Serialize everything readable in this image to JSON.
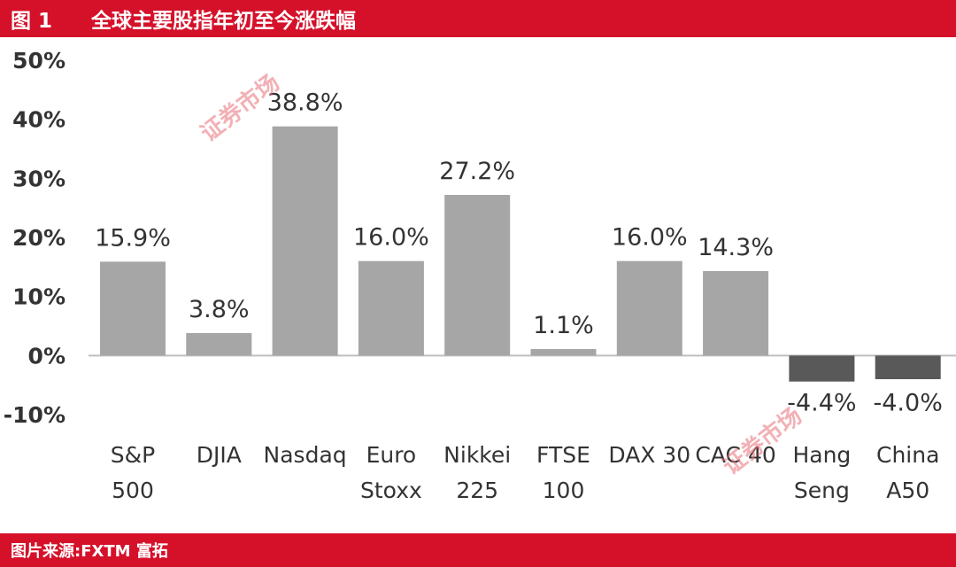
{
  "header": {
    "figure_number": "图 1",
    "title": "全球主要股指年初至今涨跌幅"
  },
  "footer": {
    "source": "图片来源:FXTM 富拓"
  },
  "watermark": {
    "text": "证券市场"
  },
  "colors": {
    "brand_red": "#d5112a",
    "positive_bar": "#a6a6a6",
    "negative_bar": "#595959"
  },
  "chart_data": {
    "type": "bar",
    "title": "全球主要股指年初至今涨跌幅",
    "xlabel": "",
    "ylabel": "",
    "ylim": [
      -0.1,
      0.5
    ],
    "ytick_labels": [
      "50%",
      "40%",
      "30%",
      "20%",
      "10%",
      "0%",
      "-10%"
    ],
    "grid": false,
    "legend": "none",
    "categories": [
      [
        "S&P",
        "500"
      ],
      [
        "DJIA"
      ],
      [
        "Nasdaq"
      ],
      [
        "Euro",
        "Stoxx"
      ],
      [
        "Nikkei",
        "225"
      ],
      [
        "FTSE",
        "100"
      ],
      [
        "DAX 30"
      ],
      [
        "CAC 40"
      ],
      [
        "Hang",
        "Seng"
      ],
      [
        "China",
        "A50"
      ]
    ],
    "values": [
      0.159,
      0.038,
      0.388,
      0.16,
      0.272,
      0.011,
      0.16,
      0.143,
      -0.044,
      -0.04
    ],
    "data_labels": [
      "15.9%",
      "3.8%",
      "38.8%",
      "16.0%",
      "27.2%",
      "1.1%",
      "16.0%",
      "14.3%",
      "-4.4%",
      "-4.0%"
    ]
  }
}
